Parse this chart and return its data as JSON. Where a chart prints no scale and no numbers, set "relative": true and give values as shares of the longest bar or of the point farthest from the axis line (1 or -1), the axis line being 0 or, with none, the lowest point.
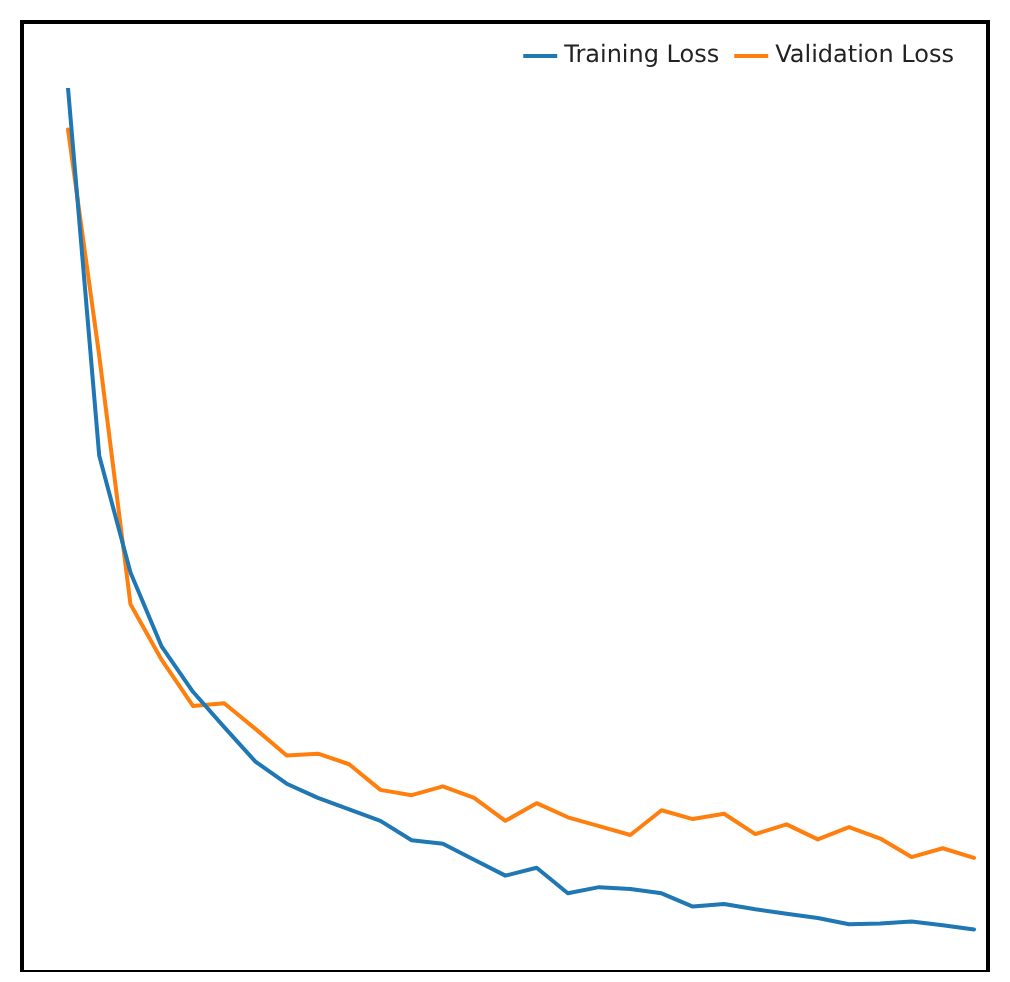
{
  "chart_data": {
    "type": "line",
    "relative": true,
    "legend": "top right",
    "marker": "none",
    "line_style": "solid",
    "categories": [
      null,
      null,
      null,
      null,
      null,
      null,
      null,
      null,
      null,
      null,
      null,
      null,
      null,
      null,
      null,
      null,
      null,
      null,
      null,
      null,
      null,
      null,
      null,
      null,
      null,
      null,
      null,
      null,
      null,
      null
    ],
    "series": [
      {
        "name": "Training Loss",
        "color": "#1f77b4",
        "values": [
          1.0,
          0.584,
          0.452,
          0.368,
          0.317,
          0.277,
          0.238,
          0.213,
          0.197,
          0.184,
          0.171,
          0.149,
          0.145,
          0.127,
          0.109,
          0.118,
          0.089,
          0.096,
          0.094,
          0.089,
          0.074,
          0.077,
          0.071,
          0.066,
          0.061,
          0.054,
          0.055,
          0.057,
          0.053,
          0.048
        ]
      },
      {
        "name": "Validation Loss",
        "color": "#ff7f0e",
        "values": [
          0.953,
          0.697,
          0.416,
          0.353,
          0.301,
          0.304,
          0.275,
          0.245,
          0.247,
          0.235,
          0.206,
          0.2,
          0.21,
          0.197,
          0.171,
          0.191,
          0.175,
          0.165,
          0.155,
          0.183,
          0.173,
          0.179,
          0.156,
          0.167,
          0.15,
          0.164,
          0.151,
          0.13,
          0.14,
          0.129
        ]
      }
    ]
  }
}
